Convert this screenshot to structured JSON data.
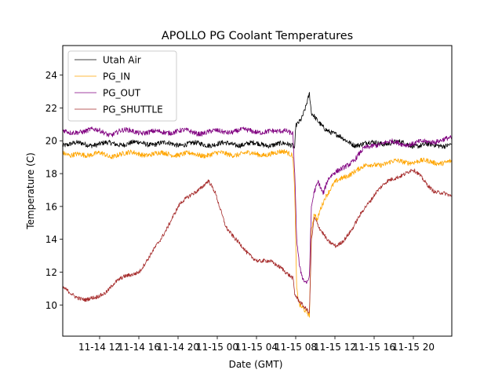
{
  "chart_data": {
    "type": "line",
    "title": "APOLLO PG Coolant Temperatures",
    "xlabel": "Date (GMT)",
    "ylabel": "Temperature (C)",
    "x_unit": "hours since 11-14 00:00 GMT",
    "xlim": [
      8.24,
      47.92
    ],
    "ylim": [
      8.1,
      25.8
    ],
    "x_ticks": [
      {
        "value": 12,
        "label": "11-14 12"
      },
      {
        "value": 16,
        "label": "11-14 16"
      },
      {
        "value": 20,
        "label": "11-14 20"
      },
      {
        "value": 24,
        "label": "11-15 00"
      },
      {
        "value": 28,
        "label": "11-15 04"
      },
      {
        "value": 32,
        "label": "11-15 08"
      },
      {
        "value": 36,
        "label": "11-15 12"
      },
      {
        "value": 40,
        "label": "11-15 16"
      },
      {
        "value": 44,
        "label": "11-15 20"
      }
    ],
    "y_ticks": [
      10,
      12,
      14,
      16,
      18,
      20,
      22,
      24
    ],
    "grid": false,
    "legend": "top-left",
    "series": [
      {
        "name": "Utah Air",
        "color": "#000000",
        "noise": 0.15,
        "points": [
          [
            8.24,
            19.8
          ],
          [
            12,
            19.8
          ],
          [
            16,
            19.85
          ],
          [
            20,
            19.8
          ],
          [
            24,
            19.8
          ],
          [
            28,
            19.8
          ],
          [
            31.7,
            19.75
          ],
          [
            31.9,
            19.6
          ],
          [
            32.0,
            21.0
          ],
          [
            32.6,
            21.4
          ],
          [
            33.0,
            22.0
          ],
          [
            33.4,
            22.8
          ],
          [
            33.6,
            21.6
          ],
          [
            34.2,
            21.2
          ],
          [
            35,
            20.8
          ],
          [
            36,
            20.4
          ],
          [
            37,
            20.0
          ],
          [
            38,
            19.8
          ],
          [
            40,
            19.85
          ],
          [
            42,
            19.9
          ],
          [
            44,
            19.75
          ],
          [
            46,
            19.7
          ],
          [
            47.9,
            19.8
          ]
        ]
      },
      {
        "name": "PG_IN",
        "color": "#FFA500",
        "noise": 0.15,
        "points": [
          [
            8.24,
            19.3
          ],
          [
            9,
            19.0
          ],
          [
            10,
            19.2
          ],
          [
            12,
            19.2
          ],
          [
            13,
            19.0
          ],
          [
            14,
            19.25
          ],
          [
            16,
            19.2
          ],
          [
            18,
            19.2
          ],
          [
            20,
            19.2
          ],
          [
            22,
            19.15
          ],
          [
            24,
            19.2
          ],
          [
            26,
            19.2
          ],
          [
            28,
            19.2
          ],
          [
            30,
            19.2
          ],
          [
            31.0,
            19.35
          ],
          [
            31.7,
            19.2
          ],
          [
            31.9,
            17.0
          ],
          [
            32.1,
            11.0
          ],
          [
            32.4,
            10.0
          ],
          [
            32.8,
            9.7
          ],
          [
            33.2,
            9.4
          ],
          [
            33.4,
            9.3
          ],
          [
            33.6,
            14.5
          ],
          [
            33.9,
            15.6
          ],
          [
            34.2,
            15.2
          ],
          [
            34.5,
            15.9
          ],
          [
            35,
            16.6
          ],
          [
            36,
            17.4
          ],
          [
            37,
            17.8
          ],
          [
            38,
            18.2
          ],
          [
            39,
            18.4
          ],
          [
            40,
            18.55
          ],
          [
            42,
            18.7
          ],
          [
            44,
            18.75
          ],
          [
            46,
            18.7
          ],
          [
            47.9,
            18.7
          ]
        ]
      },
      {
        "name": "PG_OUT",
        "color": "#800080",
        "noise": 0.15,
        "points": [
          [
            8.24,
            20.6
          ],
          [
            9,
            20.4
          ],
          [
            10,
            20.6
          ],
          [
            11,
            20.7
          ],
          [
            12,
            20.55
          ],
          [
            13,
            20.4
          ],
          [
            14,
            20.6
          ],
          [
            16,
            20.55
          ],
          [
            18,
            20.5
          ],
          [
            20,
            20.6
          ],
          [
            22,
            20.5
          ],
          [
            24,
            20.55
          ],
          [
            26,
            20.6
          ],
          [
            28,
            20.6
          ],
          [
            30,
            20.5
          ],
          [
            31,
            20.7
          ],
          [
            31.7,
            20.5
          ],
          [
            31.9,
            18.0
          ],
          [
            32.1,
            14.0
          ],
          [
            32.4,
            12.2
          ],
          [
            32.8,
            11.4
          ],
          [
            33.2,
            11.3
          ],
          [
            33.4,
            11.8
          ],
          [
            33.6,
            16.0
          ],
          [
            33.9,
            17.0
          ],
          [
            34.3,
            17.6
          ],
          [
            34.8,
            16.8
          ],
          [
            35.3,
            17.6
          ],
          [
            36,
            18.0
          ],
          [
            37,
            18.5
          ],
          [
            38,
            18.8
          ],
          [
            39,
            19.5
          ],
          [
            40,
            19.8
          ],
          [
            42,
            19.9
          ],
          [
            44,
            19.8
          ],
          [
            46,
            20.0
          ],
          [
            47.9,
            20.1
          ]
        ]
      },
      {
        "name": "PG_SHUTTLE",
        "color": "#A52A2A",
        "noise": 0.12,
        "points": [
          [
            8.24,
            11.0
          ],
          [
            9.4,
            10.6
          ],
          [
            10.6,
            10.3
          ],
          [
            11.6,
            10.4
          ],
          [
            12.6,
            10.8
          ],
          [
            13.4,
            11.3
          ],
          [
            14.6,
            11.7
          ],
          [
            16.1,
            12.1
          ],
          [
            17.0,
            12.8
          ],
          [
            18.2,
            14.0
          ],
          [
            19.4,
            15.3
          ],
          [
            20.2,
            16.1
          ],
          [
            21.4,
            16.8
          ],
          [
            22.5,
            17.2
          ],
          [
            23.1,
            17.5
          ],
          [
            23.8,
            16.8
          ],
          [
            24.9,
            14.8
          ],
          [
            25.8,
            14.0
          ],
          [
            27.0,
            13.2
          ],
          [
            28.2,
            12.7
          ],
          [
            29.4,
            12.6
          ],
          [
            30.6,
            12.3
          ],
          [
            32.2,
            12.0
          ],
          [
            33.8,
            11.7
          ],
          [
            31.7,
            11.6
          ]
        ]
      }
    ]
  }
}
